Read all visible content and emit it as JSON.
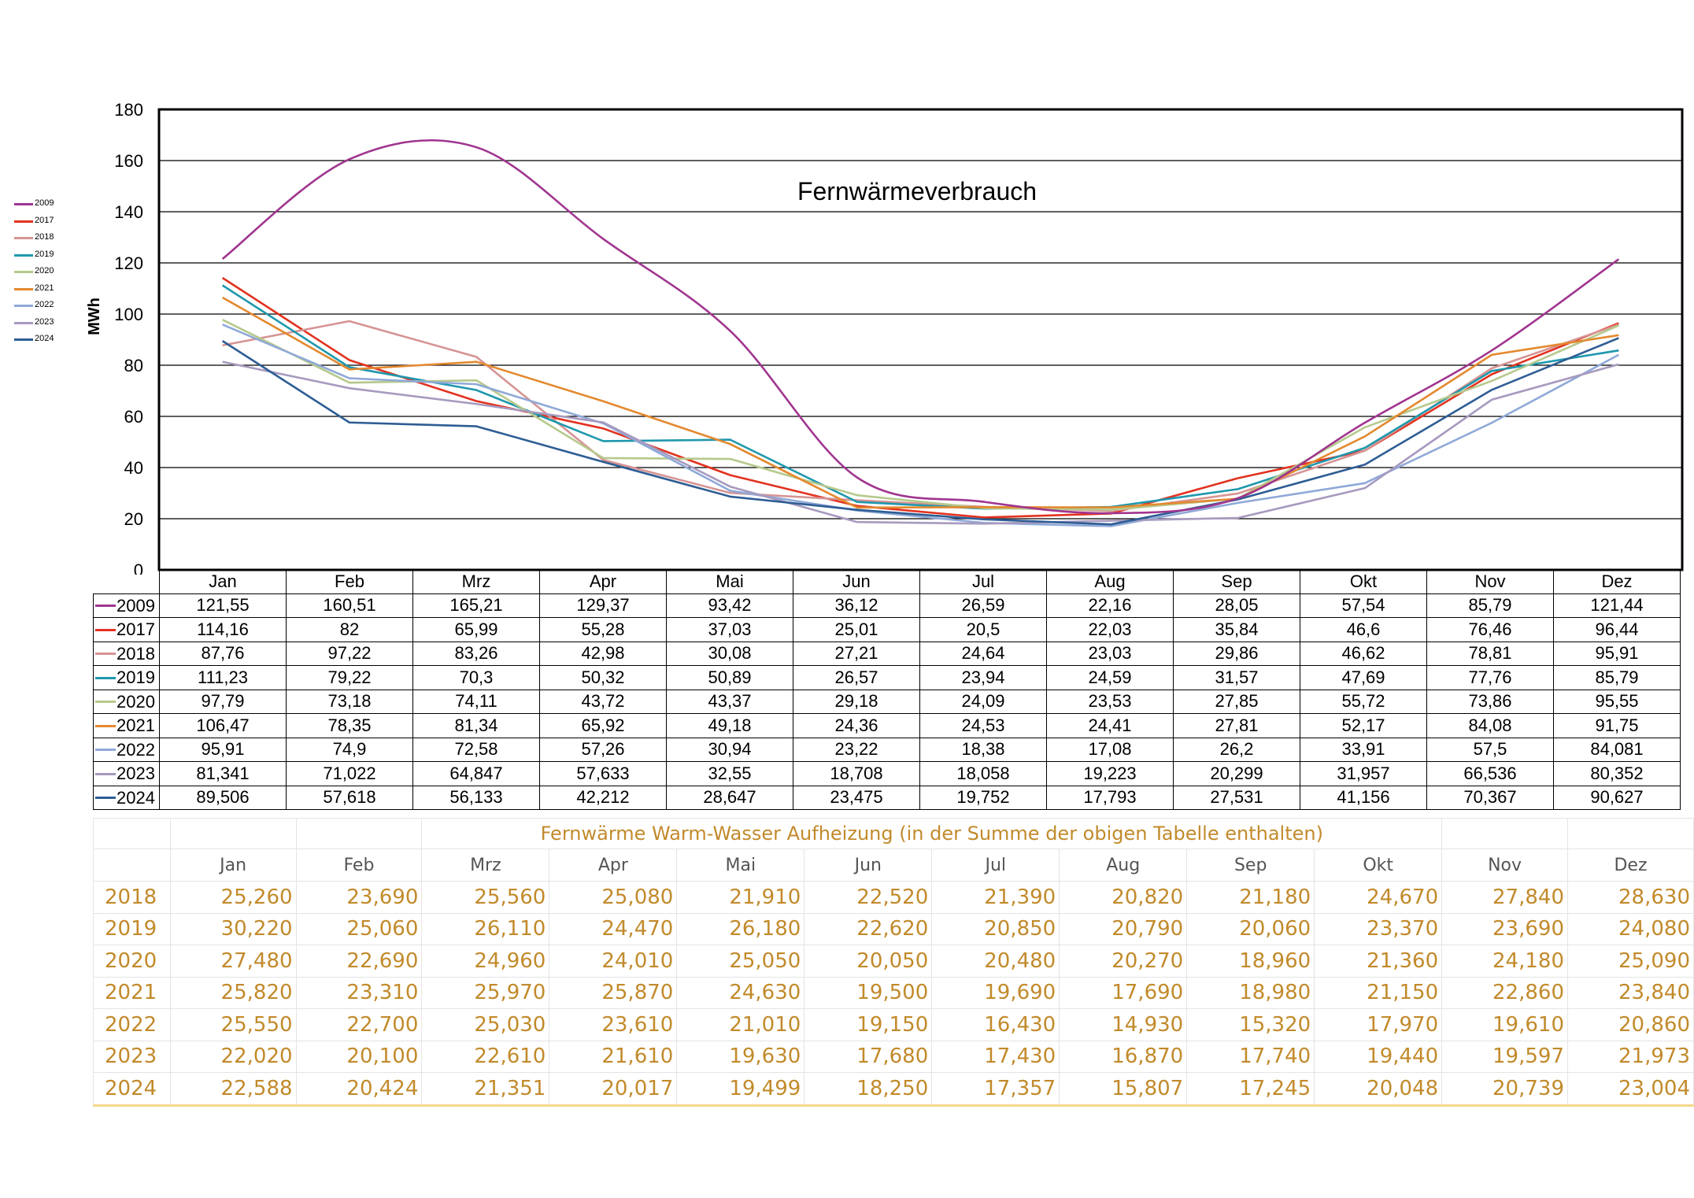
{
  "chart_data": {
    "type": "line",
    "title": "Fernwärmeverbrauch",
    "ylabel": "MWh",
    "xlabel": "",
    "ylim": [
      0,
      180
    ],
    "yticks": [
      0,
      20,
      40,
      60,
      80,
      100,
      120,
      140,
      160,
      180
    ],
    "grid": true,
    "legend_position": "left",
    "categories": [
      "Jan",
      "Feb",
      "Mrz",
      "Apr",
      "Mai",
      "Jun",
      "Jul",
      "Aug",
      "Sep",
      "Okt",
      "Nov",
      "Dez"
    ],
    "series": [
      {
        "name": "2009",
        "color": "#a0358f",
        "smooth": true,
        "labels": [
          "121,55",
          "160,51",
          "165,21",
          "129,37",
          "93,42",
          "36,12",
          "26,59",
          "22,16",
          "28,05",
          "57,54",
          "85,79",
          "121,44"
        ],
        "values": [
          121.55,
          160.51,
          165.21,
          129.37,
          93.42,
          36.12,
          26.59,
          22.16,
          28.05,
          57.54,
          85.79,
          121.44
        ]
      },
      {
        "name": "2017",
        "color": "#e2321f",
        "labels": [
          "114,16",
          "82",
          "65,99",
          "55,28",
          "37,03",
          "25,01",
          "20,5",
          "22,03",
          "35,84",
          "46,6",
          "76,46",
          "96,44"
        ],
        "values": [
          114.16,
          82,
          65.99,
          55.28,
          37.03,
          25.01,
          20.5,
          22.03,
          35.84,
          46.6,
          76.46,
          96.44
        ]
      },
      {
        "name": "2018",
        "color": "#d69494",
        "labels": [
          "87,76",
          "97,22",
          "83,26",
          "42,98",
          "30,08",
          "27,21",
          "24,64",
          "23,03",
          "29,86",
          "46,62",
          "78,81",
          "95,91"
        ],
        "values": [
          87.76,
          97.22,
          83.26,
          42.98,
          30.08,
          27.21,
          24.64,
          23.03,
          29.86,
          46.62,
          78.81,
          95.91
        ]
      },
      {
        "name": "2019",
        "color": "#1f98ad",
        "labels": [
          "111,23",
          "79,22",
          "70,3",
          "50,32",
          "50,89",
          "26,57",
          "23,94",
          "24,59",
          "31,57",
          "47,69",
          "77,76",
          "85,79"
        ],
        "values": [
          111.23,
          79.22,
          70.3,
          50.32,
          50.89,
          26.57,
          23.94,
          24.59,
          31.57,
          47.69,
          77.76,
          85.79
        ]
      },
      {
        "name": "2020",
        "color": "#b6c98c",
        "labels": [
          "97,79",
          "73,18",
          "74,11",
          "43,72",
          "43,37",
          "29,18",
          "24,09",
          "23,53",
          "27,85",
          "55,72",
          "73,86",
          "95,55"
        ],
        "values": [
          97.79,
          73.18,
          74.11,
          43.72,
          43.37,
          29.18,
          24.09,
          23.53,
          27.85,
          55.72,
          73.86,
          95.55
        ]
      },
      {
        "name": "2021",
        "color": "#e3892f",
        "labels": [
          "106,47",
          "78,35",
          "81,34",
          "65,92",
          "49,18",
          "24,36",
          "24,53",
          "24,41",
          "27,81",
          "52,17",
          "84,08",
          "91,75"
        ],
        "values": [
          106.47,
          78.35,
          81.34,
          65.92,
          49.18,
          24.36,
          24.53,
          24.41,
          27.81,
          52.17,
          84.08,
          91.75
        ]
      },
      {
        "name": "2022",
        "color": "#8fa9d8",
        "labels": [
          "95,91",
          "74,9",
          "72,58",
          "57,26",
          "30,94",
          "23,22",
          "18,38",
          "17,08",
          "26,2",
          "33,91",
          "57,5",
          "84,081"
        ],
        "values": [
          95.91,
          74.9,
          72.58,
          57.26,
          30.94,
          23.22,
          18.38,
          17.08,
          26.2,
          33.91,
          57.5,
          84.081
        ]
      },
      {
        "name": "2023",
        "color": "#a79abf",
        "labels": [
          "81,341",
          "71,022",
          "64,847",
          "57,633",
          "32,55",
          "18,708",
          "18,058",
          "19,223",
          "20,299",
          "31,957",
          "66,536",
          "80,352"
        ],
        "values": [
          81.341,
          71.022,
          64.847,
          57.633,
          32.55,
          18.708,
          18.058,
          19.223,
          20.299,
          31.957,
          66.536,
          80.352
        ]
      },
      {
        "name": "2024",
        "color": "#2e5d94",
        "labels": [
          "89,506",
          "57,618",
          "56,133",
          "42,212",
          "28,647",
          "23,475",
          "19,752",
          "17,793",
          "27,531",
          "41,156",
          "70,367",
          "90,627"
        ],
        "values": [
          89.506,
          57.618,
          56.133,
          42.212,
          28.647,
          23.475,
          19.752,
          17.793,
          27.531,
          41.156,
          70.367,
          90.627
        ]
      }
    ]
  },
  "warm_water": {
    "title": "Fernwärme  Warm-Wasser Aufheizung (in der Summe der obigen Tabelle enthalten)",
    "months": [
      "Jan",
      "Feb",
      "Mrz",
      "Apr",
      "Mai",
      "Jun",
      "Jul",
      "Aug",
      "Sep",
      "Okt",
      "Nov",
      "Dez"
    ],
    "rows": [
      {
        "year": "2018",
        "values": [
          "25,260",
          "23,690",
          "25,560",
          "25,080",
          "21,910",
          "22,520",
          "21,390",
          "20,820",
          "21,180",
          "24,670",
          "27,840",
          "28,630"
        ]
      },
      {
        "year": "2019",
        "values": [
          "30,220",
          "25,060",
          "26,110",
          "24,470",
          "26,180",
          "22,620",
          "20,850",
          "20,790",
          "20,060",
          "23,370",
          "23,690",
          "24,080"
        ]
      },
      {
        "year": "2020",
        "values": [
          "27,480",
          "22,690",
          "24,960",
          "24,010",
          "25,050",
          "20,050",
          "20,480",
          "20,270",
          "18,960",
          "21,360",
          "24,180",
          "25,090"
        ]
      },
      {
        "year": "2021",
        "values": [
          "25,820",
          "23,310",
          "25,970",
          "25,870",
          "24,630",
          "19,500",
          "19,690",
          "17,690",
          "18,980",
          "21,150",
          "22,860",
          "23,840"
        ]
      },
      {
        "year": "2022",
        "values": [
          "25,550",
          "22,700",
          "25,030",
          "23,610",
          "21,010",
          "19,150",
          "16,430",
          "14,930",
          "15,320",
          "17,970",
          "19,610",
          "20,860"
        ]
      },
      {
        "year": "2023",
        "values": [
          "22,020",
          "20,100",
          "22,610",
          "21,610",
          "19,630",
          "17,680",
          "17,430",
          "16,870",
          "17,740",
          "19,440",
          "19,597",
          "21,973"
        ]
      },
      {
        "year": "2024",
        "values": [
          "22,588",
          "20,424",
          "21,351",
          "20,017",
          "19,499",
          "18,250",
          "17,357",
          "15,807",
          "17,245",
          "20,048",
          "20,739",
          "23,004"
        ]
      }
    ]
  }
}
